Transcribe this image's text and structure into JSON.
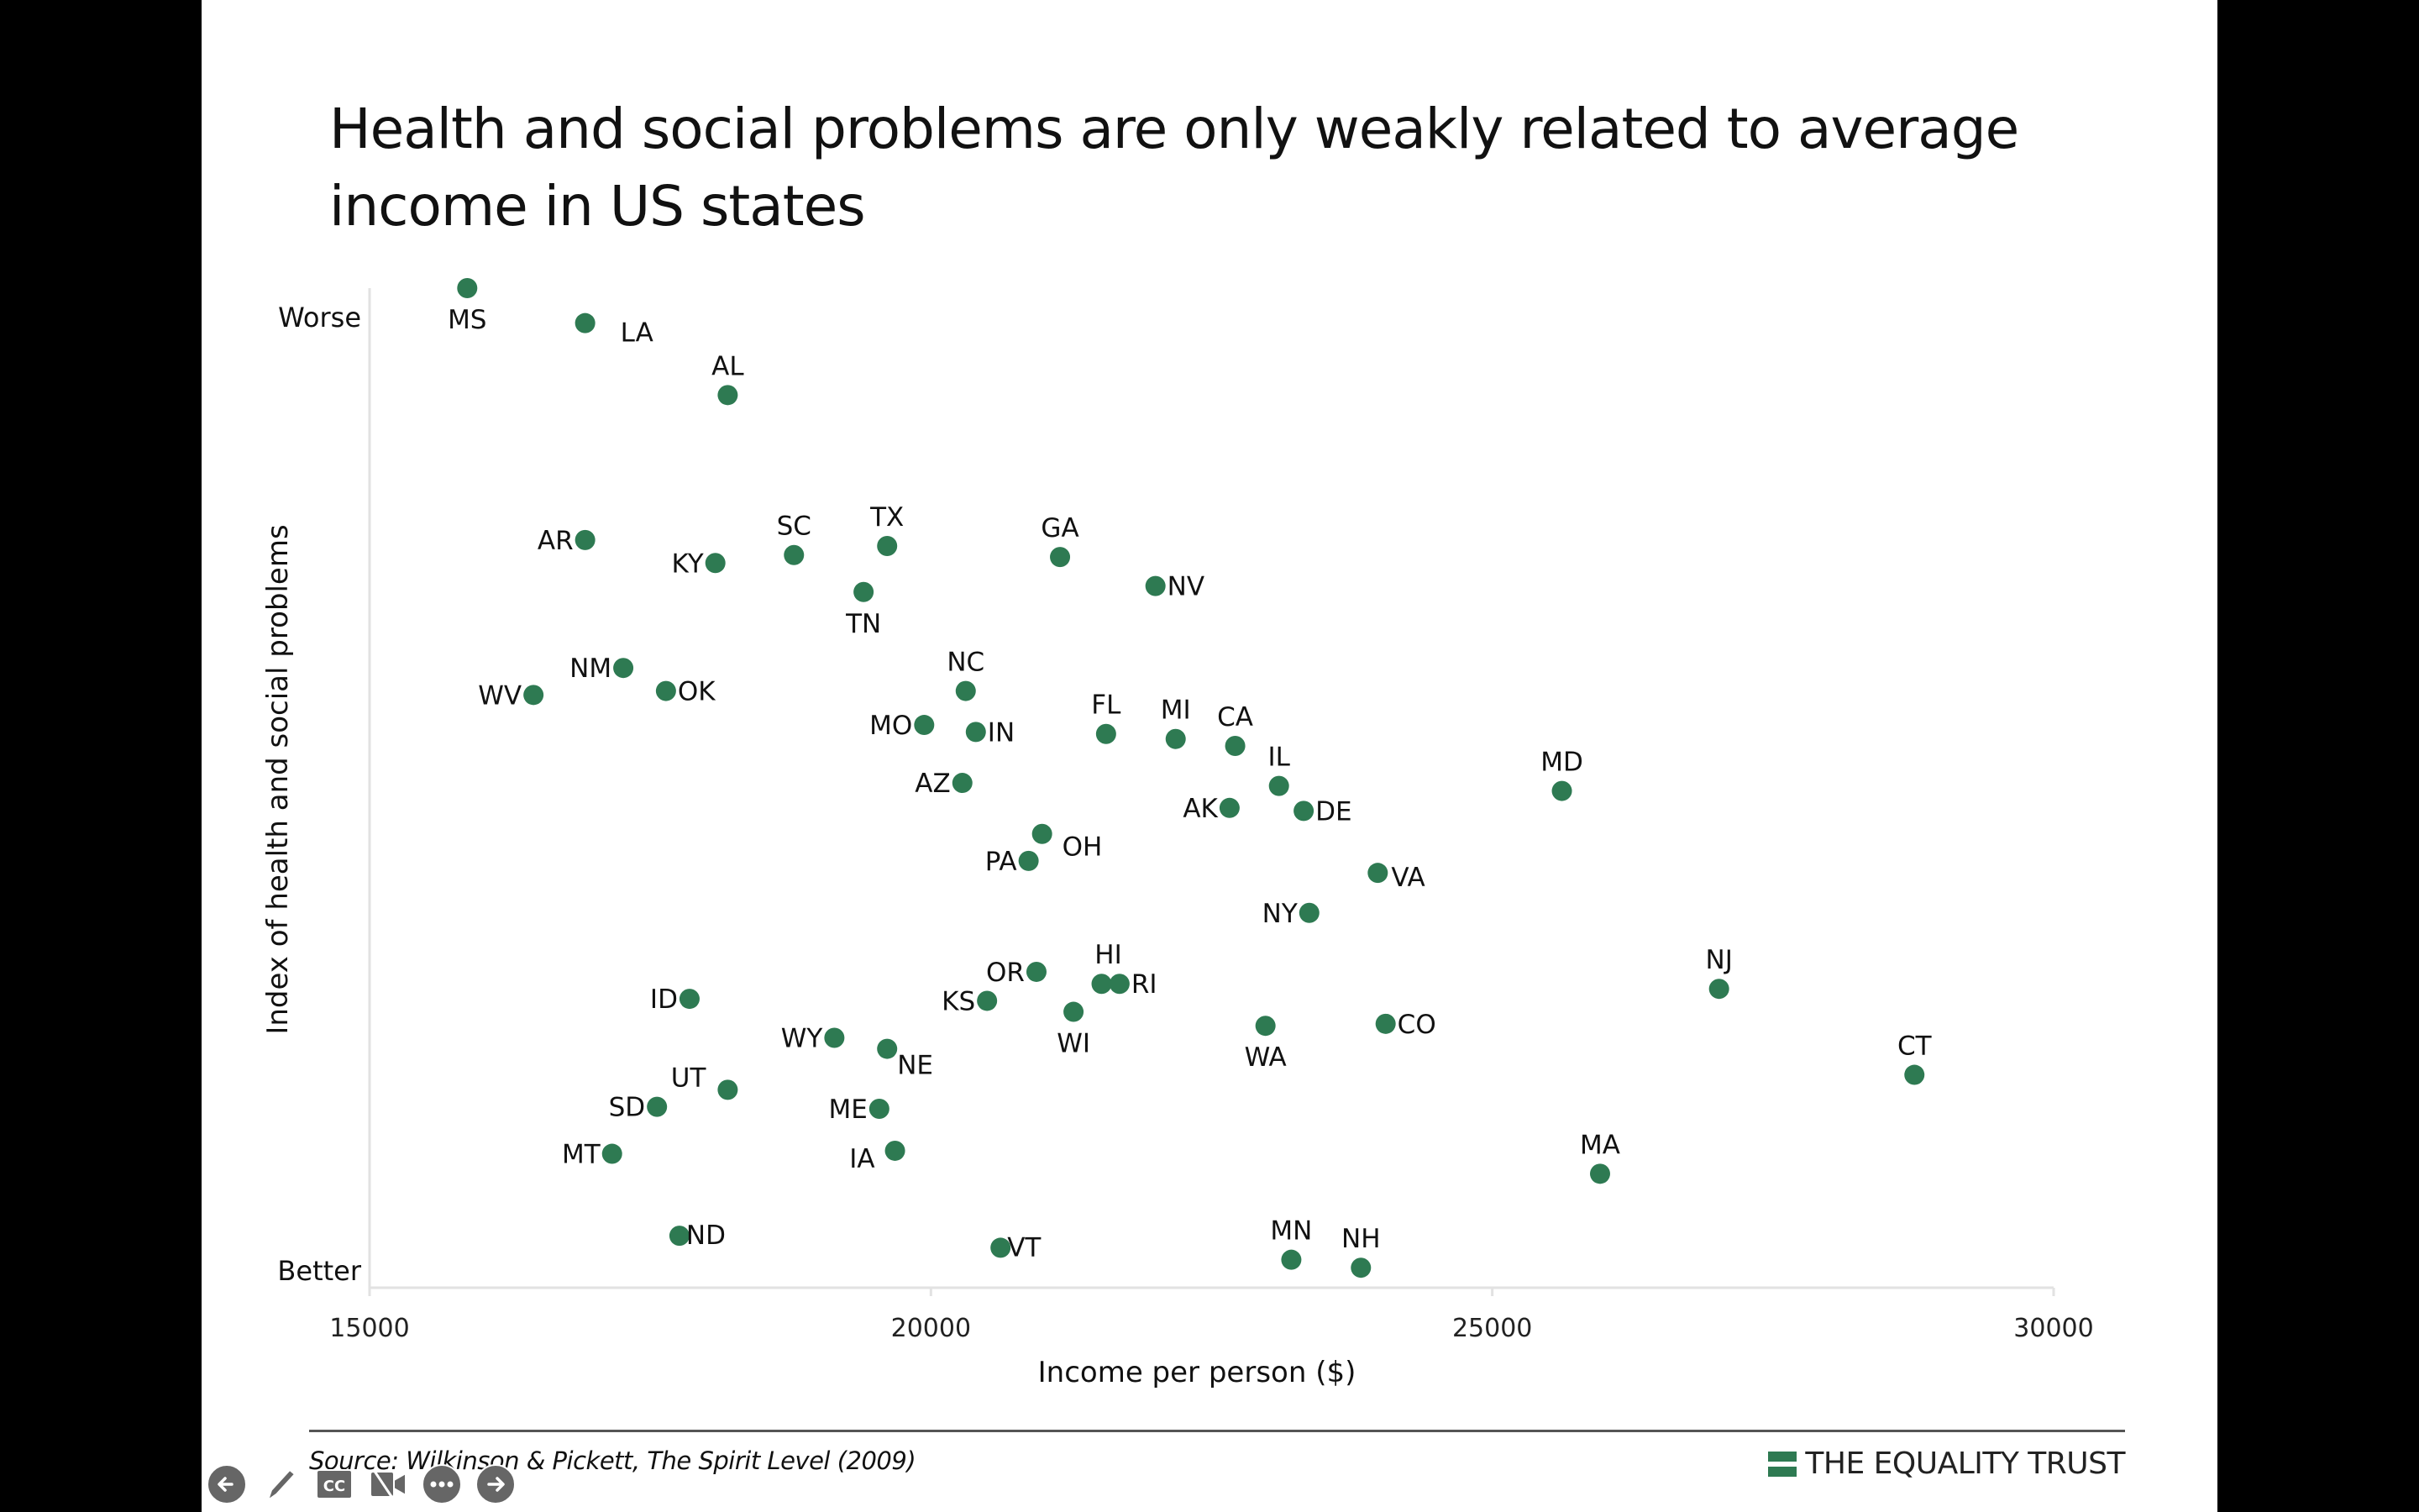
{
  "slide": {
    "title": "Health and social problems are only weakly related to average income in US states",
    "source": "Source: Wilkinson & Pickett, The Spirit Level (2009)",
    "logo_text": "THE EQUALITY TRUST",
    "brand_color": "#2e7a52"
  },
  "controls": [
    {
      "name": "previous-slide-button",
      "icon": "arrow-left-icon"
    },
    {
      "name": "pen-tool-button",
      "icon": "pencil-icon"
    },
    {
      "name": "captions-button",
      "icon": "cc-icon",
      "label": "CC"
    },
    {
      "name": "video-off-button",
      "icon": "video-off-icon"
    },
    {
      "name": "more-options-button",
      "icon": "ellipsis-icon"
    },
    {
      "name": "next-slide-button",
      "icon": "arrow-right-icon"
    }
  ],
  "chart_data": {
    "type": "scatter",
    "title": "Health and social problems are only weakly related to average income in US states",
    "xlabel": "Income per person ($)",
    "ylabel": "Index of health and social problems",
    "xlim": [
      15000,
      30000
    ],
    "xticks": [
      "15000",
      "20000",
      "25000",
      "30000"
    ],
    "ylim": [
      0,
      100
    ],
    "y_end_labels": {
      "top": "Worse",
      "bottom": "Better"
    },
    "y_note": "Y axis has no numeric ticks; values are relative index (0 = Better, 100 = Worse) estimated from position",
    "grid": false,
    "marker_color": "#2e7a52",
    "points": [
      {
        "label": "MS",
        "x": 15870,
        "y": 100
      },
      {
        "label": "LA",
        "x": 16920,
        "y": 96.5
      },
      {
        "label": "AL",
        "x": 18190,
        "y": 89.3
      },
      {
        "label": "AR",
        "x": 16920,
        "y": 74.8
      },
      {
        "label": "KY",
        "x": 18080,
        "y": 72.5
      },
      {
        "label": "SC",
        "x": 18780,
        "y": 73.3
      },
      {
        "label": "TX",
        "x": 19610,
        "y": 74.2
      },
      {
        "label": "TN",
        "x": 19400,
        "y": 69.6
      },
      {
        "label": "GA",
        "x": 21150,
        "y": 73.1
      },
      {
        "label": "NV",
        "x": 22000,
        "y": 70.2
      },
      {
        "label": "NM",
        "x": 17260,
        "y": 62.0
      },
      {
        "label": "WV",
        "x": 16460,
        "y": 59.3
      },
      {
        "label": "OK",
        "x": 17640,
        "y": 59.7
      },
      {
        "label": "NC",
        "x": 20310,
        "y": 59.7
      },
      {
        "label": "MO",
        "x": 19940,
        "y": 56.3
      },
      {
        "label": "IN",
        "x": 20400,
        "y": 55.6
      },
      {
        "label": "FL",
        "x": 21560,
        "y": 55.4
      },
      {
        "label": "MI",
        "x": 22180,
        "y": 54.9
      },
      {
        "label": "CA",
        "x": 22710,
        "y": 54.2
      },
      {
        "label": "AZ",
        "x": 20280,
        "y": 50.5
      },
      {
        "label": "IL",
        "x": 23100,
        "y": 50.2
      },
      {
        "label": "AK",
        "x": 22660,
        "y": 48.0
      },
      {
        "label": "DE",
        "x": 23320,
        "y": 47.7
      },
      {
        "label": "MD",
        "x": 25620,
        "y": 49.7
      },
      {
        "label": "OH",
        "x": 20990,
        "y": 45.4
      },
      {
        "label": "PA",
        "x": 20870,
        "y": 42.7
      },
      {
        "label": "VA",
        "x": 23980,
        "y": 41.5
      },
      {
        "label": "NY",
        "x": 23370,
        "y": 37.5
      },
      {
        "label": "OR",
        "x": 20940,
        "y": 31.6
      },
      {
        "label": "HI",
        "x": 21520,
        "y": 30.4
      },
      {
        "label": "RI",
        "x": 21680,
        "y": 30.4
      },
      {
        "label": "KS",
        "x": 20500,
        "y": 28.7
      },
      {
        "label": "WI",
        "x": 21270,
        "y": 27.6
      },
      {
        "label": "WA",
        "x": 22980,
        "y": 26.2
      },
      {
        "label": "CO",
        "x": 24050,
        "y": 26.4
      },
      {
        "label": "NJ",
        "x": 27020,
        "y": 29.9
      },
      {
        "label": "ID",
        "x": 17850,
        "y": 28.9
      },
      {
        "label": "WY",
        "x": 19140,
        "y": 25.0
      },
      {
        "label": "NE",
        "x": 19610,
        "y": 23.9
      },
      {
        "label": "UT",
        "x": 18190,
        "y": 19.8
      },
      {
        "label": "SD",
        "x": 17560,
        "y": 18.1
      },
      {
        "label": "ME",
        "x": 19540,
        "y": 17.9
      },
      {
        "label": "IA",
        "x": 19680,
        "y": 13.7
      },
      {
        "label": "MT",
        "x": 17160,
        "y": 13.4
      },
      {
        "label": "CT",
        "x": 28760,
        "y": 21.3
      },
      {
        "label": "MA",
        "x": 25960,
        "y": 11.4
      },
      {
        "label": "ND",
        "x": 17760,
        "y": 5.2
      },
      {
        "label": "VT",
        "x": 20620,
        "y": 4.0
      },
      {
        "label": "MN",
        "x": 23210,
        "y": 2.8
      },
      {
        "label": "NH",
        "x": 23830,
        "y": 2.0
      }
    ]
  }
}
